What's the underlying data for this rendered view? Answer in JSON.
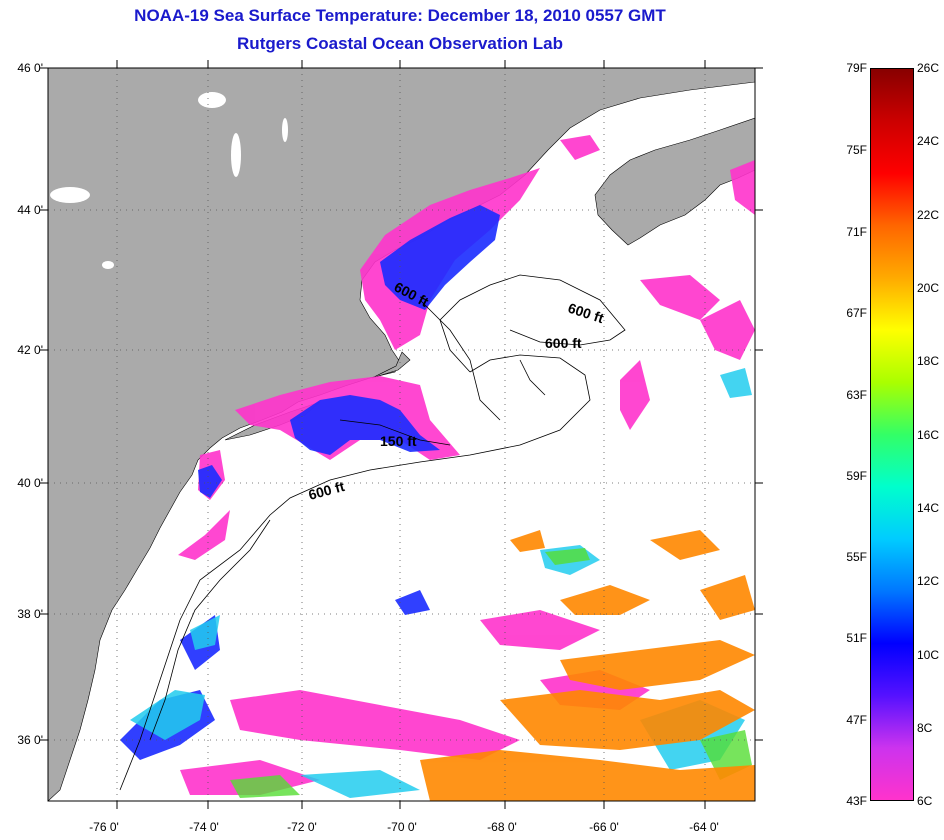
{
  "title": {
    "line1": "NOAA-19 Sea Surface Temperature:  December 18, 2010 0557 GMT",
    "line2": "Rutgers Coastal Ocean Observation Lab"
  },
  "map": {
    "lat_ticks": [
      "46 0'",
      "44 0'",
      "42 0'",
      "40 0'",
      "38 0'",
      "36 0'"
    ],
    "lon_ticks": [
      "-76 0'",
      "-74 0'",
      "-72 0'",
      "-70 0'",
      "-68 0'",
      "-66 0'",
      "-64 0'"
    ],
    "contour_labels": [
      "600 ft",
      "600 ft",
      "600 ft",
      "150 ft",
      "600 ft"
    ],
    "colors": {
      "land": "#aaaaaa",
      "ocean_cloud": "#ffffff",
      "cold": "#ff33cc",
      "cool": "#1a2bff",
      "mid": "#22ccee",
      "warm": "#ff8800"
    }
  },
  "colorbar": {
    "fahrenheit": [
      "79F",
      "75F",
      "71F",
      "67F",
      "63F",
      "59F",
      "55F",
      "51F",
      "47F",
      "43F"
    ],
    "celsius": [
      "26C",
      "24C",
      "22C",
      "20C",
      "18C",
      "16C",
      "14C",
      "12C",
      "10C",
      "8C",
      "6C"
    ],
    "gradient": [
      "#ff33cc",
      "#cc33ee",
      "#5511ff",
      "#0000ff",
      "#0077ff",
      "#00ccff",
      "#00ffcc",
      "#33ff66",
      "#aaff00",
      "#ffff00",
      "#ffaa00",
      "#ff6600",
      "#ff0000",
      "#cc0000",
      "#880000"
    ]
  }
}
